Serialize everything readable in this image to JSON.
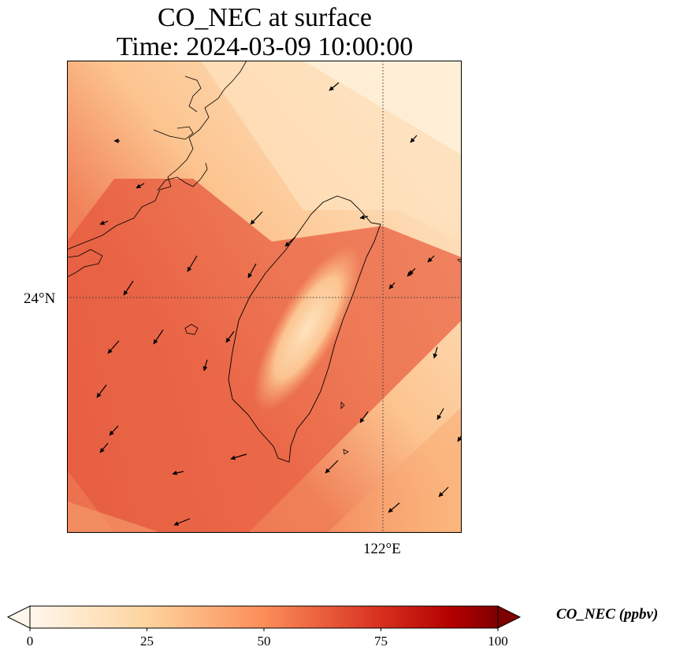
{
  "title": {
    "line1": "CO_NEC at surface",
    "line2": "Time: 2024-03-09 10:00:00"
  },
  "map": {
    "lat_tick_label": "24°N",
    "lon_tick_label": "122°E",
    "gridlines": "dotted",
    "coastline_color": "#000000",
    "wind_vectors": "black arrows"
  },
  "colorbar": {
    "label": "CO_NEC (ppbv)",
    "ticks": [
      "0",
      "25",
      "50",
      "75",
      "100"
    ],
    "range": [
      0,
      100
    ],
    "colormap": "OrRd",
    "colors": [
      "#fff7ec",
      "#fdd49e",
      "#fc8d59",
      "#d7301f",
      "#7f0000"
    ],
    "extend": "both"
  }
}
